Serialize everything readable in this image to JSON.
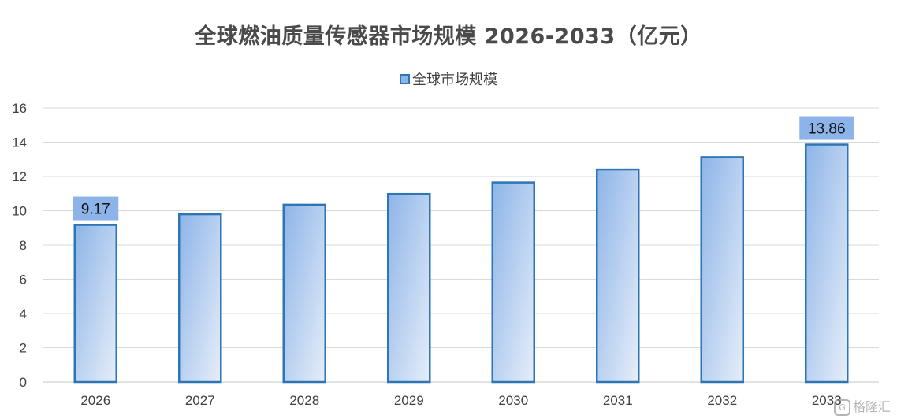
{
  "chart_data": {
    "type": "bar",
    "title": "全球燃油质量传感器市场规模 2026-2033（亿元）",
    "legend": {
      "position": "top",
      "entries": [
        "全球市场规模"
      ]
    },
    "categories": [
      "2026",
      "2027",
      "2028",
      "2029",
      "2030",
      "2031",
      "2032",
      "2033"
    ],
    "series": [
      {
        "name": "全球市场规模",
        "values": [
          9.17,
          9.79,
          10.35,
          10.98,
          11.65,
          12.41,
          13.13,
          13.86
        ]
      }
    ],
    "data_labels": [
      {
        "category": "2026",
        "text": "9.17"
      },
      {
        "category": "2033",
        "text": "13.86"
      }
    ],
    "ylim": [
      0,
      16
    ],
    "yticks": [
      0,
      2,
      4,
      6,
      8,
      10,
      12,
      14,
      16
    ],
    "xlabel": "",
    "ylabel": "",
    "grid": true,
    "colors": {
      "bar_border": "#2e75b6",
      "bar_fill_dark": "#8db4e8",
      "bar_fill_light": "#e6eef9",
      "label_bg": "#8db4e8",
      "grid": "#d9d9d9",
      "axis_text": "#404040"
    }
  },
  "watermark": {
    "icon": "gelonghui-logo-icon",
    "text": "格隆汇"
  }
}
